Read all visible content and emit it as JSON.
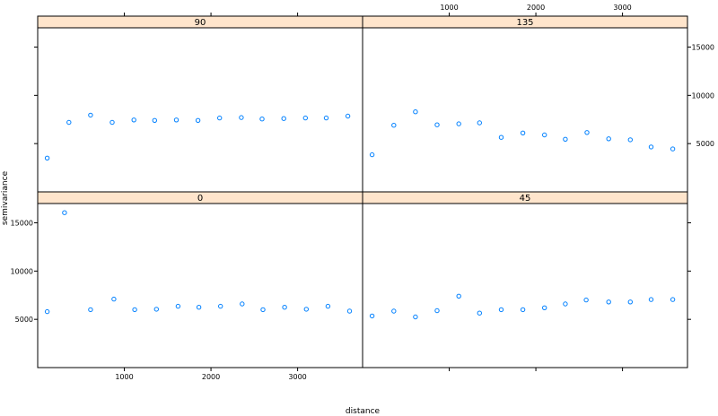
{
  "chart_data": {
    "type": "scatter",
    "xlabel": "distance",
    "ylabel": "semivariance",
    "xlim": [
      0,
      3750
    ],
    "ylim": [
      0,
      17000
    ],
    "x_ticks": [
      1000,
      2000,
      3000
    ],
    "x_tick_labels": [
      "1000",
      "2000",
      "3000"
    ],
    "y_ticks": [
      5000,
      10000,
      15000
    ],
    "y_tick_labels": [
      "5000",
      "10000",
      "15000"
    ],
    "panels": [
      {
        "label": "0",
        "points": [
          {
            "x": 110,
            "y": 5800
          },
          {
            "x": 310,
            "y": 16050
          },
          {
            "x": 610,
            "y": 6000
          },
          {
            "x": 880,
            "y": 7100
          },
          {
            "x": 1120,
            "y": 6000
          },
          {
            "x": 1370,
            "y": 6050
          },
          {
            "x": 1620,
            "y": 6350
          },
          {
            "x": 1860,
            "y": 6250
          },
          {
            "x": 2110,
            "y": 6350
          },
          {
            "x": 2360,
            "y": 6600
          },
          {
            "x": 2600,
            "y": 6000
          },
          {
            "x": 2850,
            "y": 6250
          },
          {
            "x": 3100,
            "y": 6050
          },
          {
            "x": 3350,
            "y": 6350
          },
          {
            "x": 3600,
            "y": 5850
          }
        ]
      },
      {
        "label": "45",
        "points": [
          {
            "x": 110,
            "y": 5350
          },
          {
            "x": 360,
            "y": 5850
          },
          {
            "x": 610,
            "y": 5250
          },
          {
            "x": 860,
            "y": 5900
          },
          {
            "x": 1110,
            "y": 7400
          },
          {
            "x": 1350,
            "y": 5650
          },
          {
            "x": 1600,
            "y": 6000
          },
          {
            "x": 1850,
            "y": 6000
          },
          {
            "x": 2100,
            "y": 6200
          },
          {
            "x": 2340,
            "y": 6600
          },
          {
            "x": 2580,
            "y": 7000
          },
          {
            "x": 2840,
            "y": 6800
          },
          {
            "x": 3090,
            "y": 6800
          },
          {
            "x": 3330,
            "y": 7050
          },
          {
            "x": 3580,
            "y": 7050
          }
        ]
      },
      {
        "label": "90",
        "points": [
          {
            "x": 110,
            "y": 3500
          },
          {
            "x": 360,
            "y": 7200
          },
          {
            "x": 610,
            "y": 7950
          },
          {
            "x": 860,
            "y": 7200
          },
          {
            "x": 1110,
            "y": 7450
          },
          {
            "x": 1350,
            "y": 7400
          },
          {
            "x": 1600,
            "y": 7450
          },
          {
            "x": 1850,
            "y": 7400
          },
          {
            "x": 2100,
            "y": 7650
          },
          {
            "x": 2350,
            "y": 7700
          },
          {
            "x": 2590,
            "y": 7550
          },
          {
            "x": 2840,
            "y": 7600
          },
          {
            "x": 3090,
            "y": 7650
          },
          {
            "x": 3330,
            "y": 7650
          },
          {
            "x": 3580,
            "y": 7850
          }
        ]
      },
      {
        "label": "135",
        "points": [
          {
            "x": 110,
            "y": 3850
          },
          {
            "x": 360,
            "y": 6900
          },
          {
            "x": 610,
            "y": 8300
          },
          {
            "x": 860,
            "y": 6950
          },
          {
            "x": 1110,
            "y": 7050
          },
          {
            "x": 1350,
            "y": 7150
          },
          {
            "x": 1600,
            "y": 5650
          },
          {
            "x": 1850,
            "y": 6100
          },
          {
            "x": 2100,
            "y": 5900
          },
          {
            "x": 2340,
            "y": 5450
          },
          {
            "x": 2590,
            "y": 6150
          },
          {
            "x": 2840,
            "y": 5500
          },
          {
            "x": 3090,
            "y": 5400
          },
          {
            "x": 3330,
            "y": 4650
          },
          {
            "x": 3580,
            "y": 4450
          }
        ]
      }
    ]
  }
}
